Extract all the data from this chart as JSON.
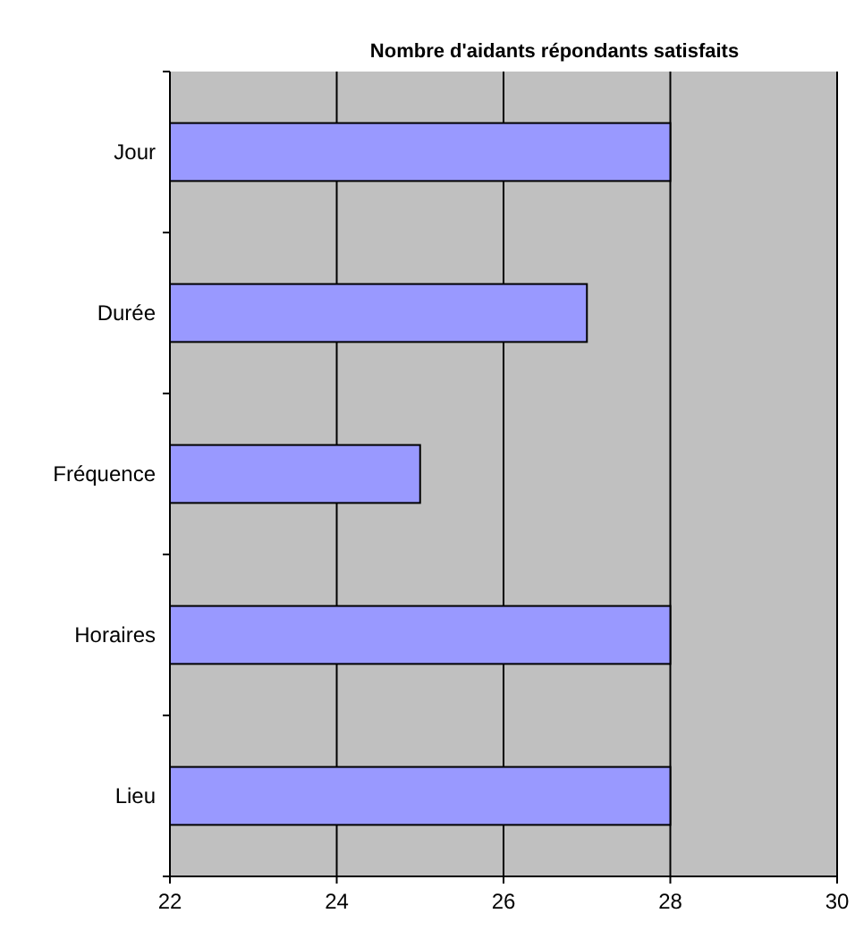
{
  "chart_data": {
    "type": "bar",
    "orientation": "horizontal",
    "title": "Nombre d'aidants répondants satisfaits",
    "categories": [
      "Jour",
      "Durée",
      "Fréquence",
      "Horaires",
      "Lieu"
    ],
    "values": [
      28,
      27,
      25,
      28,
      28
    ],
    "color": "#9999ff",
    "xlim": [
      22,
      30
    ],
    "xticks": [
      22,
      24,
      26,
      28,
      30
    ],
    "grid": "x"
  }
}
